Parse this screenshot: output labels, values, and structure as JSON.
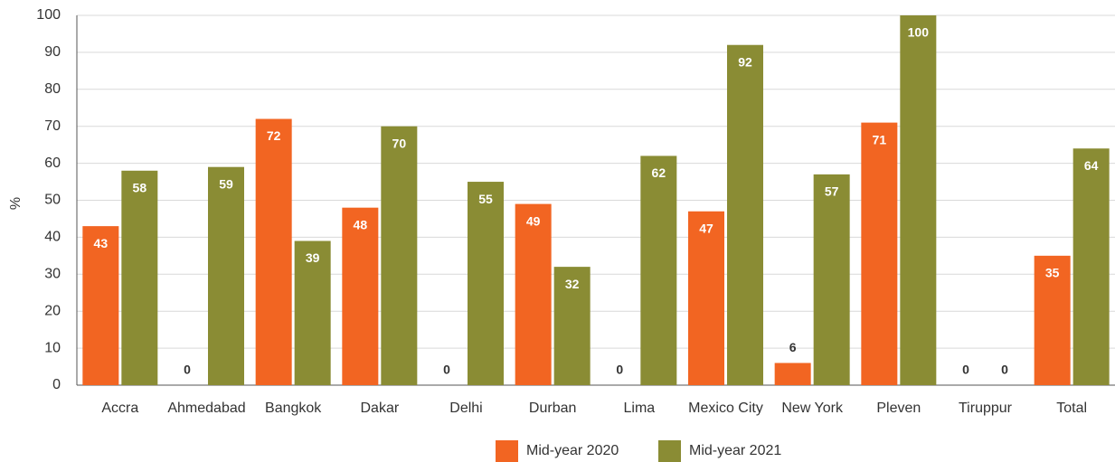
{
  "chart_data": {
    "type": "bar",
    "y_label": "%",
    "categories": [
      "Accra",
      "Ahmedabad",
      "Bangkok",
      "Dakar",
      "Delhi",
      "Durban",
      "Lima",
      "Mexico City",
      "New York",
      "Pleven",
      "Tiruppur",
      "Total"
    ],
    "series": [
      {
        "name": "Mid-year 2020",
        "color": "#f26522",
        "values": [
          43,
          0,
          72,
          48,
          0,
          49,
          0,
          47,
          6,
          71,
          0,
          35
        ]
      },
      {
        "name": "Mid-year 2021",
        "color": "#8a8c34",
        "values": [
          58,
          59,
          39,
          70,
          55,
          32,
          62,
          92,
          57,
          100,
          0,
          64
        ]
      }
    ],
    "ylim": [
      0,
      100
    ],
    "yticks": [
      0,
      10,
      20,
      30,
      40,
      50,
      60,
      70,
      80,
      90,
      100
    ],
    "grid": true,
    "legend": "bottom"
  }
}
